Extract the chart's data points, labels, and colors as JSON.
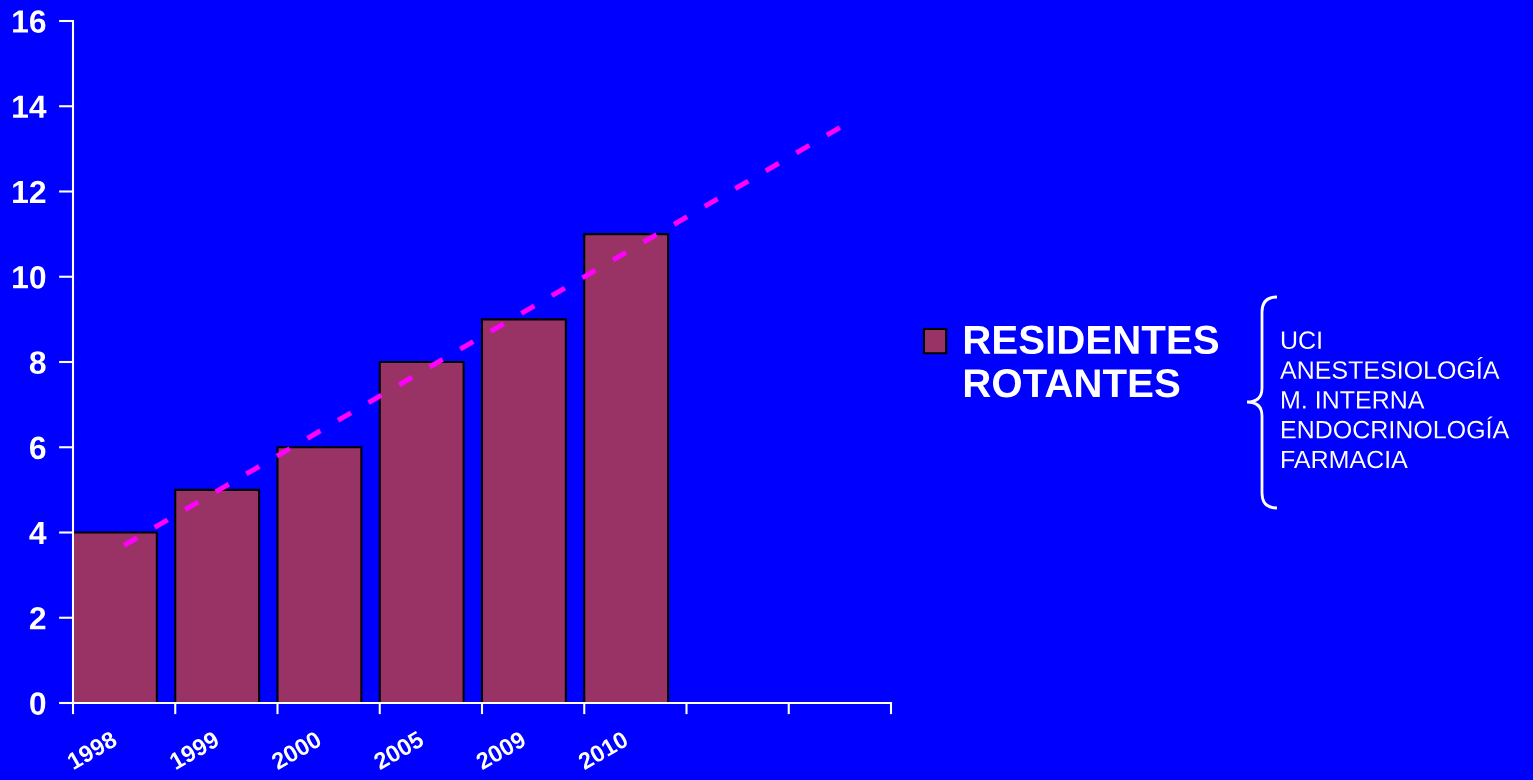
{
  "chart_data": {
    "type": "bar",
    "categories": [
      "1998",
      "1999",
      "2000",
      "2005",
      "2009",
      "2010",
      null,
      null
    ],
    "series": [
      {
        "name": "RESIDENTES\nROTANTES",
        "color": "#993366",
        "values": [
          4,
          5,
          6,
          8,
          9,
          11,
          null,
          null
        ]
      },
      {
        "type": "line",
        "color": "#ff00ff",
        "line_style": "dashed",
        "values": [
          3.7,
          5.1,
          6.5,
          7.9,
          9.3,
          10.7,
          12.1,
          13.5
        ]
      }
    ],
    "ylim": [
      0,
      16
    ],
    "yticks": [
      0,
      2,
      4,
      6,
      8,
      10,
      12,
      14,
      16
    ],
    "legend": "right",
    "annotations": [
      "UCI\nANESTESIOLOGÍA\nM. INTERNA\nENDOCRINOLOGÍA\nFARMACIA"
    ]
  }
}
